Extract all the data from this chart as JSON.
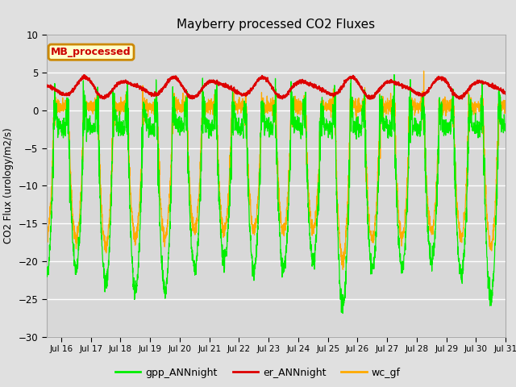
{
  "title": "Mayberry processed CO2 Fluxes",
  "ylabel": "CO2 Flux (urology/m2/s)",
  "ylim": [
    -30,
    10
  ],
  "yticks": [
    -30,
    -25,
    -20,
    -15,
    -10,
    -5,
    0,
    5,
    10
  ],
  "fig_bg_color": "#e0e0e0",
  "plot_bg_color": "#d8d8d8",
  "legend_label": "MB_processed",
  "legend_box_color": "#ffffcc",
  "legend_box_edge": "#cc8800",
  "legend_text_color": "#cc0000",
  "line_colors": {
    "gpp": "#00ee00",
    "er": "#dd0000",
    "wc": "#ffaa00"
  },
  "line_labels": [
    "gpp_ANNnight",
    "er_ANNnight",
    "wc_gf"
  ],
  "start_day": 15.5,
  "end_day": 31.0,
  "n_points": 3000
}
